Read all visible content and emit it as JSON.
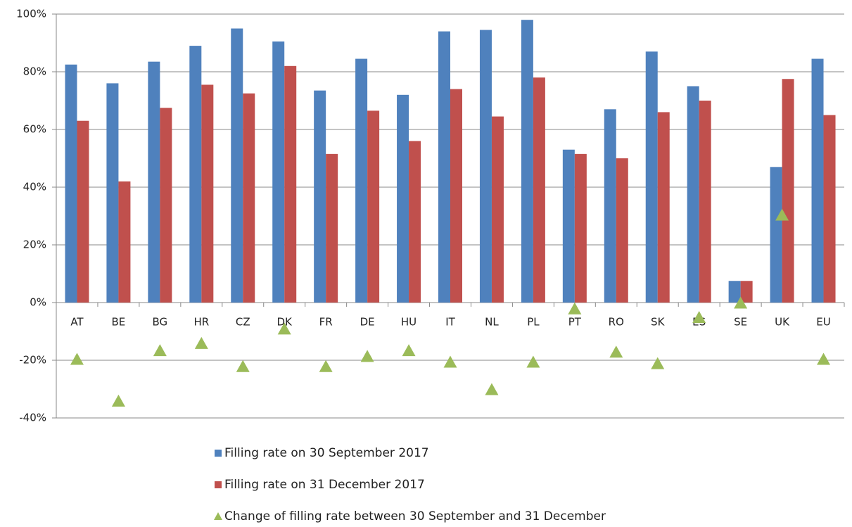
{
  "chart_data": {
    "type": "bar",
    "categories": [
      "AT",
      "BE",
      "BG",
      "HR",
      "CZ",
      "DK",
      "FR",
      "DE",
      "HU",
      "IT",
      "NL",
      "PL",
      "PT",
      "RO",
      "SK",
      "ES",
      "SE",
      "UK",
      "EU"
    ],
    "series": [
      {
        "name": "Filling rate on 30 September 2017",
        "color": "#4f81bd",
        "values": [
          82.5,
          76,
          83.5,
          89,
          95,
          90.5,
          73.5,
          84.5,
          72,
          94,
          94.5,
          98,
          53,
          67,
          87,
          75,
          7.5,
          47,
          84.5
        ]
      },
      {
        "name": "Filling rate on 31 December 2017",
        "color": "#c0504d",
        "values": [
          63,
          42,
          67.5,
          75.5,
          72.5,
          82,
          51.5,
          66.5,
          56,
          74,
          64.5,
          78,
          51.5,
          50,
          66,
          70,
          7.5,
          77.5,
          65
        ]
      },
      {
        "name": "Change of filling rate between 30 September and 31 December",
        "color": "#9bbb59",
        "type": "scatter",
        "marker": "triangle",
        "values": [
          -19.5,
          -34,
          -16.5,
          -14,
          -22,
          -9,
          -22,
          -18.5,
          -16.5,
          -20.5,
          -30,
          -20.5,
          -2,
          -17,
          -21,
          -5,
          0,
          30.5,
          -19.5
        ]
      }
    ],
    "ylim": [
      -40,
      100
    ],
    "yticks": [
      {
        "value": -40,
        "label": "-40%"
      },
      {
        "value": -20,
        "label": "-20%"
      },
      {
        "value": 0,
        "label": "0%"
      },
      {
        "value": 20,
        "label": "20%"
      },
      {
        "value": 40,
        "label": "40%"
      },
      {
        "value": 60,
        "label": "60%"
      },
      {
        "value": 80,
        "label": "80%"
      },
      {
        "value": 100,
        "label": "100%"
      }
    ],
    "grid": true,
    "legend": "bottom"
  }
}
